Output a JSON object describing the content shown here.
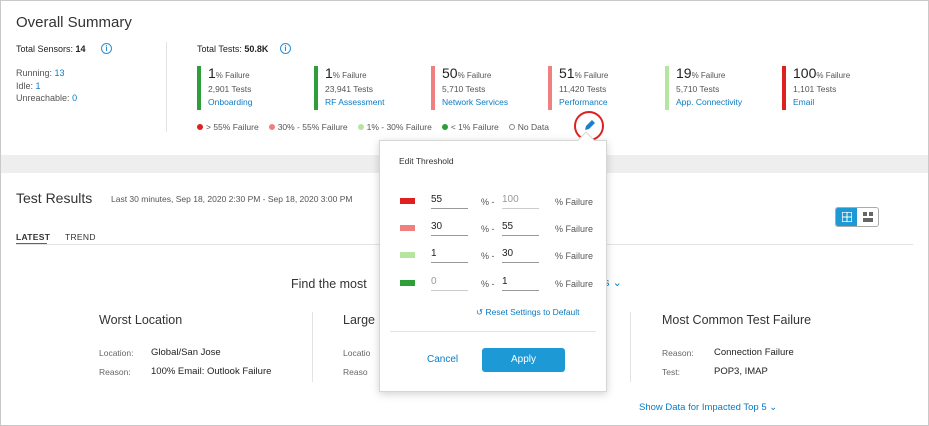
{
  "summary": {
    "title": "Overall Summary",
    "sensors_label": "Total Sensors:",
    "sensors_value": "14",
    "running_label": "Running:",
    "running_value": "13",
    "idle_label": "Idle:",
    "idle_value": "1",
    "unreachable_label": "Unreachable:",
    "unreachable_value": "0",
    "tests_label": "Total Tests:",
    "tests_value": "50.8K",
    "categories": [
      {
        "pct": "1",
        "unit": "% Failure",
        "tests": "2,901 Tests",
        "name": "Onboarding",
        "color": "#2e9e3a"
      },
      {
        "pct": "1",
        "unit": "% Failure",
        "tests": "23,941 Tests",
        "name": "RF Assessment",
        "color": "#2e9e3a"
      },
      {
        "pct": "50",
        "unit": "% Failure",
        "tests": "5,710 Tests",
        "name": "Network Services",
        "color": "#f08080"
      },
      {
        "pct": "51",
        "unit": "% Failure",
        "tests": "11,420 Tests",
        "name": "Performance",
        "color": "#f08080"
      },
      {
        "pct": "19",
        "unit": "% Failure",
        "tests": "5,710 Tests",
        "name": "App. Connectivity",
        "color": "#b5e6a0"
      },
      {
        "pct": "100",
        "unit": "% Failure",
        "tests": "1,101 Tests",
        "name": "Email",
        "color": "#e02020"
      }
    ],
    "legend": [
      {
        "label": "> 55% Failure",
        "color": "#e02020"
      },
      {
        "label": "30% - 55% Failure",
        "color": "#f08080"
      },
      {
        "label": "1% - 30% Failure",
        "color": "#b5e6a0"
      },
      {
        "label": "< 1% Failure",
        "color": "#2e9e3a"
      },
      {
        "label": "No Data",
        "color": "none"
      }
    ]
  },
  "results": {
    "title": "Test Results",
    "time_range": "Last 30 minutes, Sep 18, 2020 2:30 PM - Sep 18, 2020 3:00 PM",
    "tabs": [
      "LATEST",
      "TREND"
    ],
    "find_text": "Find the most",
    "find_suffix": "s",
    "worst_location": {
      "title": "Worst Location",
      "location_label": "Location:",
      "location_value": "Global/San Jose",
      "reason_label": "Reason:",
      "reason_value": "100% Email: Outlook Failure"
    },
    "middle": {
      "title": "Large",
      "location_label": "Locatio",
      "reason_label": "Reaso"
    },
    "common_failure": {
      "title": "Most Common Test Failure",
      "reason_label": "Reason:",
      "reason_value": "Connection Failure",
      "test_label": "Test:",
      "test_value": "POP3, IMAP"
    },
    "show_data": "Show Data for Impacted Top 5"
  },
  "threshold": {
    "title": "Edit Threshold",
    "rows": [
      {
        "color": "#e02020",
        "from": "55",
        "to": "100",
        "from_disabled": false,
        "to_disabled": true
      },
      {
        "color": "#f08080",
        "from": "30",
        "to": "55",
        "from_disabled": false,
        "to_disabled": false
      },
      {
        "color": "#b5e6a0",
        "from": "1",
        "to": "30",
        "from_disabled": false,
        "to_disabled": false
      },
      {
        "color": "#2e9e3a",
        "from": "0",
        "to": "1",
        "from_disabled": true,
        "to_disabled": false
      }
    ],
    "sep": "% -",
    "suffix": "% Failure",
    "reset": "Reset Settings to Default",
    "cancel": "Cancel",
    "apply": "Apply"
  }
}
